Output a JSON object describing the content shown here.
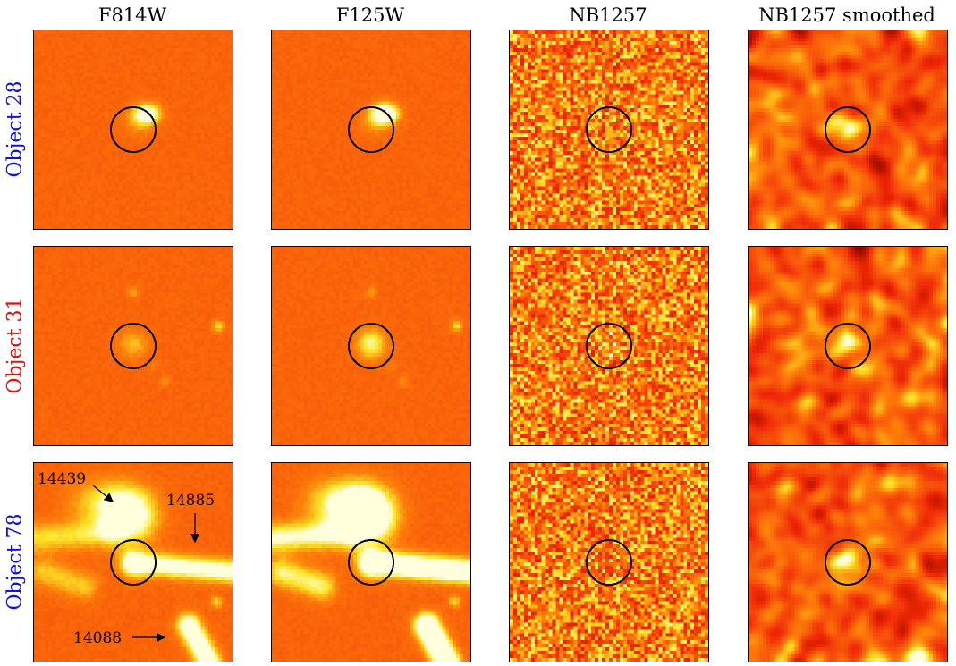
{
  "columns": [
    "F814W",
    "F125W",
    "NB1257",
    "NB1257 smoothed"
  ],
  "rows": [
    {
      "label": "Object 28",
      "color": "#1010e0"
    },
    {
      "label": "Object 31",
      "color": "#e01010"
    },
    {
      "label": "Object 78",
      "color": "#1010e0"
    }
  ],
  "annotations": {
    "a": "14439",
    "b": "14885",
    "c": "14088"
  },
  "colors": {
    "background": "#f36a10",
    "bright": "#fffbd0",
    "dark": "#7a0000"
  }
}
